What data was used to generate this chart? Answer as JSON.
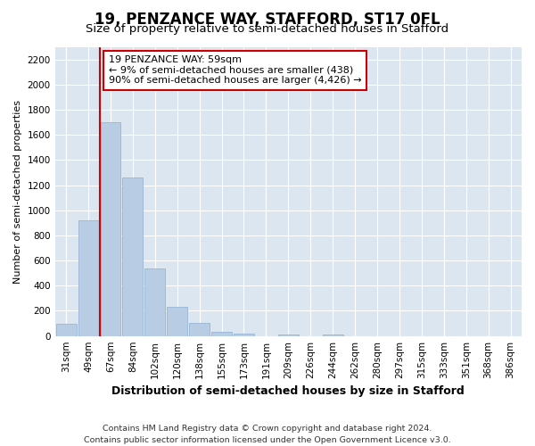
{
  "title": "19, PENZANCE WAY, STAFFORD, ST17 0FL",
  "subtitle": "Size of property relative to semi-detached houses in Stafford",
  "xlabel": "Distribution of semi-detached houses by size in Stafford",
  "ylabel": "Number of semi-detached properties",
  "footer_line1": "Contains HM Land Registry data © Crown copyright and database right 2024.",
  "footer_line2": "Contains public sector information licensed under the Open Government Licence v3.0.",
  "annotation_line1": "19 PENZANCE WAY: 59sqm",
  "annotation_line2": "← 9% of semi-detached houses are smaller (438)",
  "annotation_line3": "90% of semi-detached houses are larger (4,426) →",
  "bar_labels": [
    "31sqm",
    "49sqm",
    "67sqm",
    "84sqm",
    "102sqm",
    "120sqm",
    "138sqm",
    "155sqm",
    "173sqm",
    "191sqm",
    "209sqm",
    "226sqm",
    "244sqm",
    "262sqm",
    "280sqm",
    "297sqm",
    "315sqm",
    "333sqm",
    "351sqm",
    "368sqm",
    "386sqm"
  ],
  "bar_values": [
    95,
    920,
    1700,
    1260,
    540,
    235,
    105,
    35,
    20,
    0,
    15,
    0,
    15,
    0,
    0,
    0,
    0,
    0,
    0,
    0,
    0
  ],
  "bar_color": "#b8cce4",
  "bar_edge_color": "#9ab5d4",
  "vline_color": "#cc0000",
  "vline_x": 1.5,
  "ylim": [
    0,
    2300
  ],
  "yticks": [
    0,
    200,
    400,
    600,
    800,
    1000,
    1200,
    1400,
    1600,
    1800,
    2000,
    2200
  ],
  "plot_bg_color": "#dce6f1",
  "annotation_box_facecolor": "#ffffff",
  "annotation_box_edgecolor": "#cc0000",
  "title_fontsize": 12,
  "subtitle_fontsize": 9.5,
  "ylabel_fontsize": 8,
  "xlabel_fontsize": 9,
  "tick_fontsize": 7.5,
  "annotation_fontsize": 8,
  "footer_fontsize": 6.8
}
